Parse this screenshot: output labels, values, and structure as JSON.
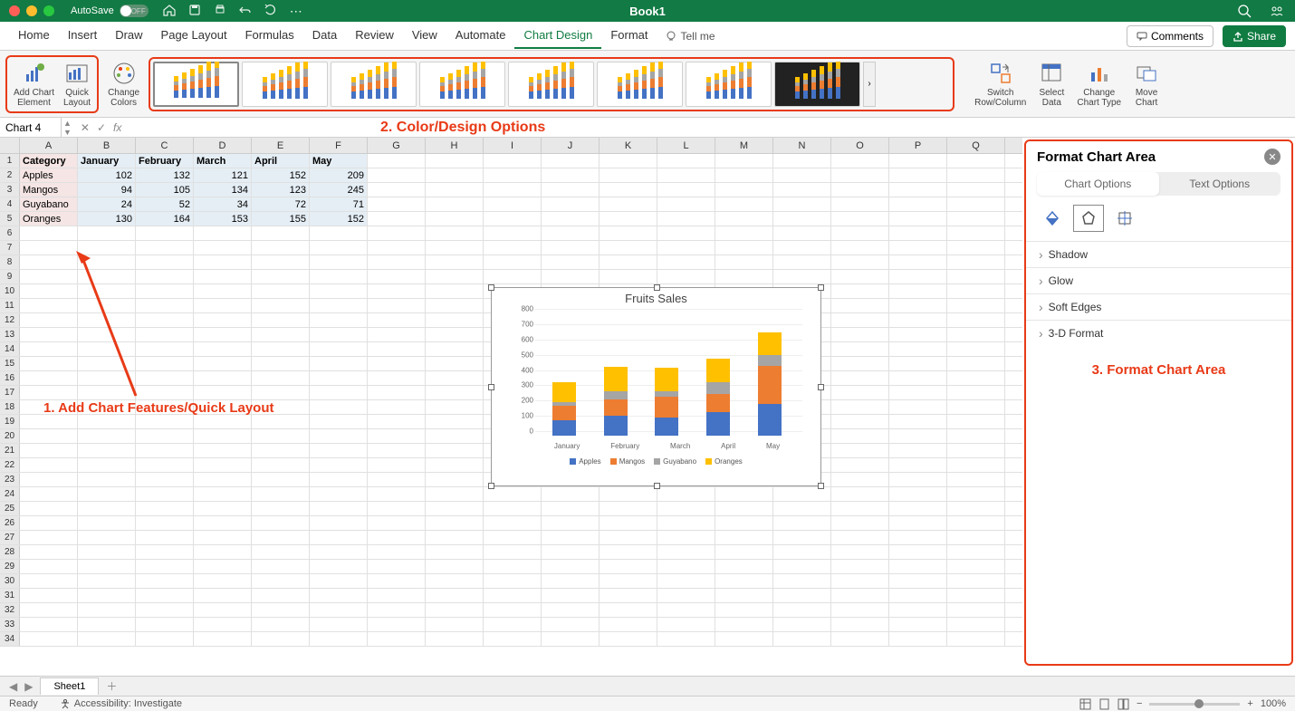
{
  "titlebar": {
    "autosave_label": "AutoSave",
    "autosave_state": "OFF",
    "doc_title": "Book1",
    "traffic_colors": [
      "#ff5f57",
      "#febc2e",
      "#28c840"
    ]
  },
  "menu": {
    "items": [
      "Home",
      "Insert",
      "Draw",
      "Page Layout",
      "Formulas",
      "Data",
      "Review",
      "View",
      "Automate",
      "Chart Design",
      "Format"
    ],
    "active_index": 9,
    "tell_me": "Tell me",
    "comments": "Comments",
    "share": "Share"
  },
  "ribbon": {
    "add_chart_element": "Add Chart\nElement",
    "quick_layout": "Quick\nLayout",
    "change_colors": "Change\nColors",
    "switch_rc": "Switch\nRow/Column",
    "select_data": "Select\nData",
    "change_type": "Change\nChart Type",
    "move_chart": "Move\nChart",
    "callout2": "2. Color/Design Options"
  },
  "name_box": "Chart 4",
  "columns": [
    "A",
    "B",
    "C",
    "D",
    "E",
    "F",
    "G",
    "H",
    "I",
    "J",
    "K",
    "L",
    "M",
    "N",
    "O",
    "P",
    "Q"
  ],
  "table": {
    "headers": [
      "Category",
      "January",
      "February",
      "March",
      "April",
      "May"
    ],
    "rows": [
      [
        "Apples",
        102,
        132,
        121,
        152,
        209
      ],
      [
        "Mangos",
        94,
        105,
        134,
        123,
        245
      ],
      [
        "Guyabano",
        24,
        52,
        34,
        72,
        71
      ],
      [
        "Oranges",
        130,
        164,
        153,
        155,
        152
      ]
    ]
  },
  "annot1": "1. Add Chart Features/Quick Layout",
  "chart": {
    "title": "Fruits Sales",
    "y_max": 800,
    "y_ticks": [
      0,
      100,
      200,
      300,
      400,
      500,
      600,
      700,
      800
    ],
    "x_labels": [
      "January",
      "February",
      "March",
      "April",
      "May"
    ],
    "series": [
      {
        "name": "Apples",
        "color": "#4472c4"
      },
      {
        "name": "Mangos",
        "color": "#ed7d31"
      },
      {
        "name": "Guyabano",
        "color": "#a5a5a5"
      },
      {
        "name": "Oranges",
        "color": "#ffc000"
      }
    ],
    "stacks": [
      [
        102,
        94,
        24,
        130
      ],
      [
        132,
        105,
        52,
        164
      ],
      [
        121,
        134,
        34,
        153
      ],
      [
        152,
        123,
        72,
        155
      ],
      [
        209,
        245,
        71,
        152
      ]
    ]
  },
  "format_pane": {
    "title": "Format Chart Area",
    "tab_chart": "Chart Options",
    "tab_text": "Text Options",
    "sections": [
      "Shadow",
      "Glow",
      "Soft Edges",
      "3-D Format"
    ],
    "callout3": "3. Format Chart Area"
  },
  "sheet_tab": "Sheet1",
  "status": {
    "ready": "Ready",
    "accessibility": "Accessibility: Investigate",
    "zoom": "100%"
  },
  "style_bar_colors": [
    "#4472c4",
    "#ed7d31",
    "#a5a5a5",
    "#ffc000"
  ]
}
